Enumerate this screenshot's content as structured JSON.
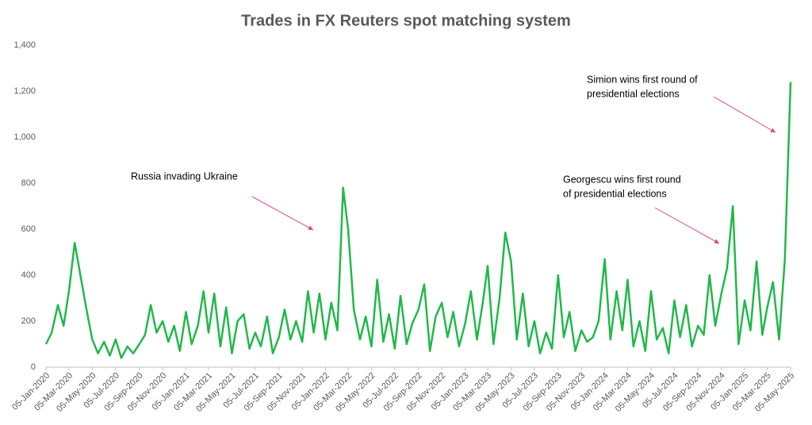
{
  "chart_data": {
    "type": "line",
    "title": "Trades in FX Reuters spot matching system",
    "annotations": [
      "Russia invading Ukraine",
      "Georgescu wins first round",
      "of presidential elections",
      "Simion wins first round of",
      "presidential elections"
    ],
    "x": [
      "05-Jan-2020",
      "20-Jan-2020",
      "05-Feb-2020",
      "20-Feb-2020",
      "05-Mar-2020",
      "20-Mar-2020",
      "05-Apr-2020",
      "20-Apr-2020",
      "05-May-2020",
      "20-May-2020",
      "05-Jun-2020",
      "20-Jun-2020",
      "05-Jul-2020",
      "20-Jul-2020",
      "05-Aug-2020",
      "20-Aug-2020",
      "05-Sep-2020",
      "20-Sep-2020",
      "05-Oct-2020",
      "20-Oct-2020",
      "05-Nov-2020",
      "20-Nov-2020",
      "05-Dec-2020",
      "20-Dec-2020",
      "05-Jan-2021",
      "20-Jan-2021",
      "05-Feb-2021",
      "20-Feb-2021",
      "05-Mar-2021",
      "20-Mar-2021",
      "05-Apr-2021",
      "20-Apr-2021",
      "05-May-2021",
      "20-May-2021",
      "05-Jun-2021",
      "20-Jun-2021",
      "05-Jul-2021",
      "20-Jul-2021",
      "05-Aug-2021",
      "20-Aug-2021",
      "05-Sep-2021",
      "20-Sep-2021",
      "05-Oct-2021",
      "20-Oct-2021",
      "05-Nov-2021",
      "20-Nov-2021",
      "05-Dec-2021",
      "20-Dec-2021",
      "05-Jan-2022",
      "20-Jan-2022",
      "05-Feb-2022",
      "20-Feb-2022",
      "05-Mar-2022",
      "20-Mar-2022",
      "05-Apr-2022",
      "20-Apr-2022",
      "05-May-2022",
      "20-May-2022",
      "05-Jun-2022",
      "20-Jun-2022",
      "05-Jul-2022",
      "20-Jul-2022",
      "05-Aug-2022",
      "20-Aug-2022",
      "05-Sep-2022",
      "20-Sep-2022",
      "05-Oct-2022",
      "20-Oct-2022",
      "05-Nov-2022",
      "20-Nov-2022",
      "05-Dec-2022",
      "20-Dec-2022",
      "05-Jan-2023",
      "20-Jan-2023",
      "05-Feb-2023",
      "20-Feb-2023",
      "05-Mar-2023",
      "20-Mar-2023",
      "05-Apr-2023",
      "20-Apr-2023",
      "05-May-2023",
      "20-May-2023",
      "05-Jun-2023",
      "20-Jun-2023",
      "05-Jul-2023",
      "20-Jul-2023",
      "05-Aug-2023",
      "20-Aug-2023",
      "05-Sep-2023",
      "20-Sep-2023",
      "05-Oct-2023",
      "20-Oct-2023",
      "05-Nov-2023",
      "20-Nov-2023",
      "05-Dec-2023",
      "20-Dec-2023",
      "05-Jan-2024",
      "20-Jan-2024",
      "05-Feb-2024",
      "20-Feb-2024",
      "05-Mar-2024",
      "20-Mar-2024",
      "05-Apr-2024",
      "20-Apr-2024",
      "05-May-2024",
      "20-May-2024",
      "05-Jun-2024",
      "20-Jun-2024",
      "05-Jul-2024",
      "20-Jul-2024",
      "05-Aug-2024",
      "20-Aug-2024",
      "05-Sep-2024",
      "20-Sep-2024",
      "05-Oct-2024",
      "20-Oct-2024",
      "05-Nov-2024",
      "20-Nov-2024",
      "05-Dec-2024",
      "20-Dec-2024",
      "05-Jan-2025",
      "20-Jan-2025",
      "05-Feb-2025",
      "20-Feb-2025",
      "05-Mar-2025",
      "20-Mar-2025",
      "05-Apr-2025",
      "20-Apr-2025",
      "05-May-2025"
    ],
    "series": [
      {
        "name": "Trades",
        "color": "#22b84a",
        "values": [
          100,
          150,
          270,
          180,
          330,
          540,
          390,
          250,
          120,
          60,
          110,
          50,
          120,
          40,
          90,
          60,
          100,
          140,
          270,
          150,
          200,
          110,
          180,
          70,
          240,
          100,
          180,
          330,
          150,
          320,
          90,
          260,
          60,
          200,
          230,
          80,
          150,
          90,
          220,
          60,
          130,
          250,
          120,
          200,
          110,
          330,
          150,
          320,
          120,
          280,
          160,
          780,
          600,
          250,
          120,
          220,
          90,
          380,
          110,
          230,
          80,
          310,
          100,
          190,
          250,
          360,
          70,
          220,
          280,
          130,
          240,
          90,
          190,
          330,
          120,
          280,
          440,
          100,
          300,
          585,
          460,
          120,
          320,
          90,
          200,
          60,
          150,
          80,
          400,
          130,
          240,
          70,
          160,
          110,
          130,
          200,
          470,
          120,
          330,
          160,
          380,
          90,
          200,
          70,
          330,
          120,
          170,
          60,
          290,
          130,
          270,
          90,
          180,
          140,
          400,
          180,
          320,
          430,
          700,
          100,
          290,
          160,
          460,
          140,
          260,
          370,
          120,
          470,
          1240
        ]
      }
    ],
    "xlim": [
      "05-Jan-2020",
      "05-May-2025"
    ],
    "xticks": [
      "05-Jan-2020",
      "05-Mar-2020",
      "05-May-2020",
      "05-Jul-2020",
      "05-Sep-2020",
      "05-Nov-2020",
      "05-Jan-2021",
      "05-Mar-2021",
      "05-May-2021",
      "05-Jul-2021",
      "05-Sep-2021",
      "05-Nov-2021",
      "05-Jan-2022",
      "05-Mar-2022",
      "05-May-2022",
      "05-Jul-2022",
      "05-Sep-2022",
      "05-Nov-2022",
      "05-Jan-2023",
      "05-Mar-2023",
      "05-May-2023",
      "05-Jul-2023",
      "05-Sep-2023",
      "05-Nov-2023",
      "05-Jan-2024",
      "05-Mar-2024",
      "05-May-2024",
      "05-Jul-2024",
      "05-Sep-2024",
      "05-Nov-2024",
      "05-Jan-2025",
      "05-Mar-2025",
      "05-May-2025"
    ],
    "ylim": [
      0,
      1400
    ],
    "yticks": [
      0,
      200,
      400,
      600,
      800,
      {
        "value": 1000,
        "label": "1,000"
      },
      {
        "value": 1200,
        "label": "1,200"
      },
      {
        "value": 1400,
        "label": "1,400"
      }
    ],
    "grid": false
  }
}
